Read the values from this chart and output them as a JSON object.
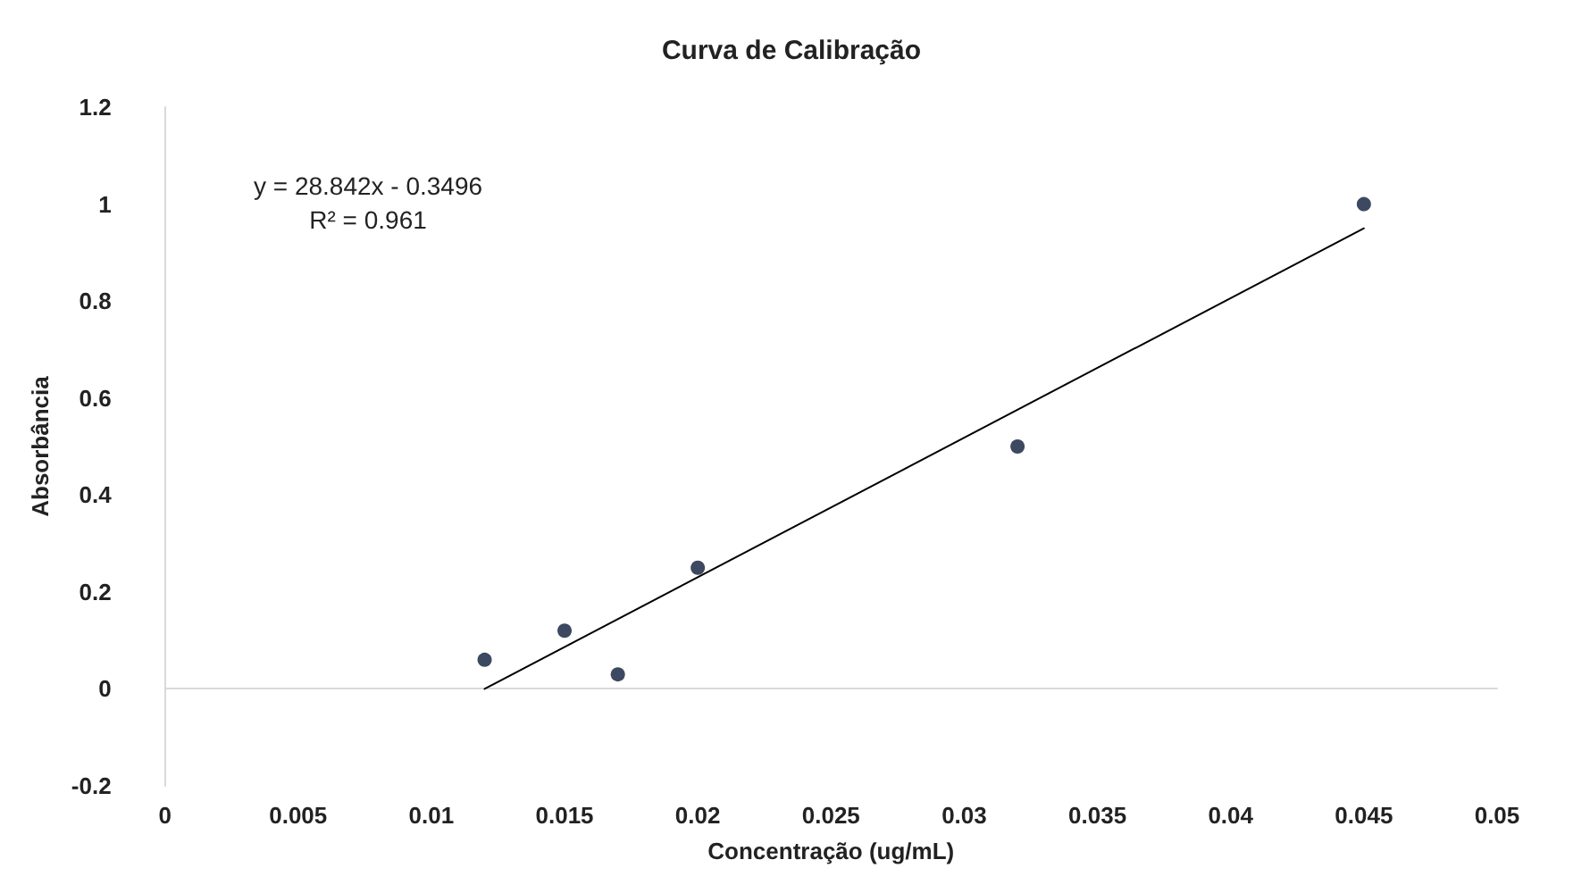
{
  "chart_data": {
    "type": "scatter",
    "title": "Curva de Calibração",
    "xlabel": "Concentração (ug/mL)",
    "ylabel": "Absorbância",
    "x": [
      0.012,
      0.015,
      0.017,
      0.02,
      0.032,
      0.045
    ],
    "series": [
      {
        "type": "scatter",
        "color": "#0d1a3a",
        "values": [
          0.06,
          0.12,
          0.03,
          0.25,
          0.5,
          1.0
        ]
      },
      {
        "type": "line",
        "color": "#000000",
        "x": [
          0.012,
          0.045
        ],
        "values": [
          0,
          0.95
        ],
        "marker": "none"
      }
    ],
    "xlim": [
      0,
      0.05
    ],
    "xticks": [
      0,
      0.005,
      0.01,
      0.015,
      0.02,
      0.025,
      0.03,
      0.035,
      0.04,
      0.045,
      0.05
    ],
    "ylim": [
      -0.2,
      1.2
    ],
    "yticks": [
      -0.2,
      0,
      0.2,
      0.4,
      0.6,
      0.8,
      1,
      1.2
    ],
    "marker": "circle",
    "annotations": [
      "y = 28.842x - 0.3496",
      "R² = 0.961"
    ]
  }
}
